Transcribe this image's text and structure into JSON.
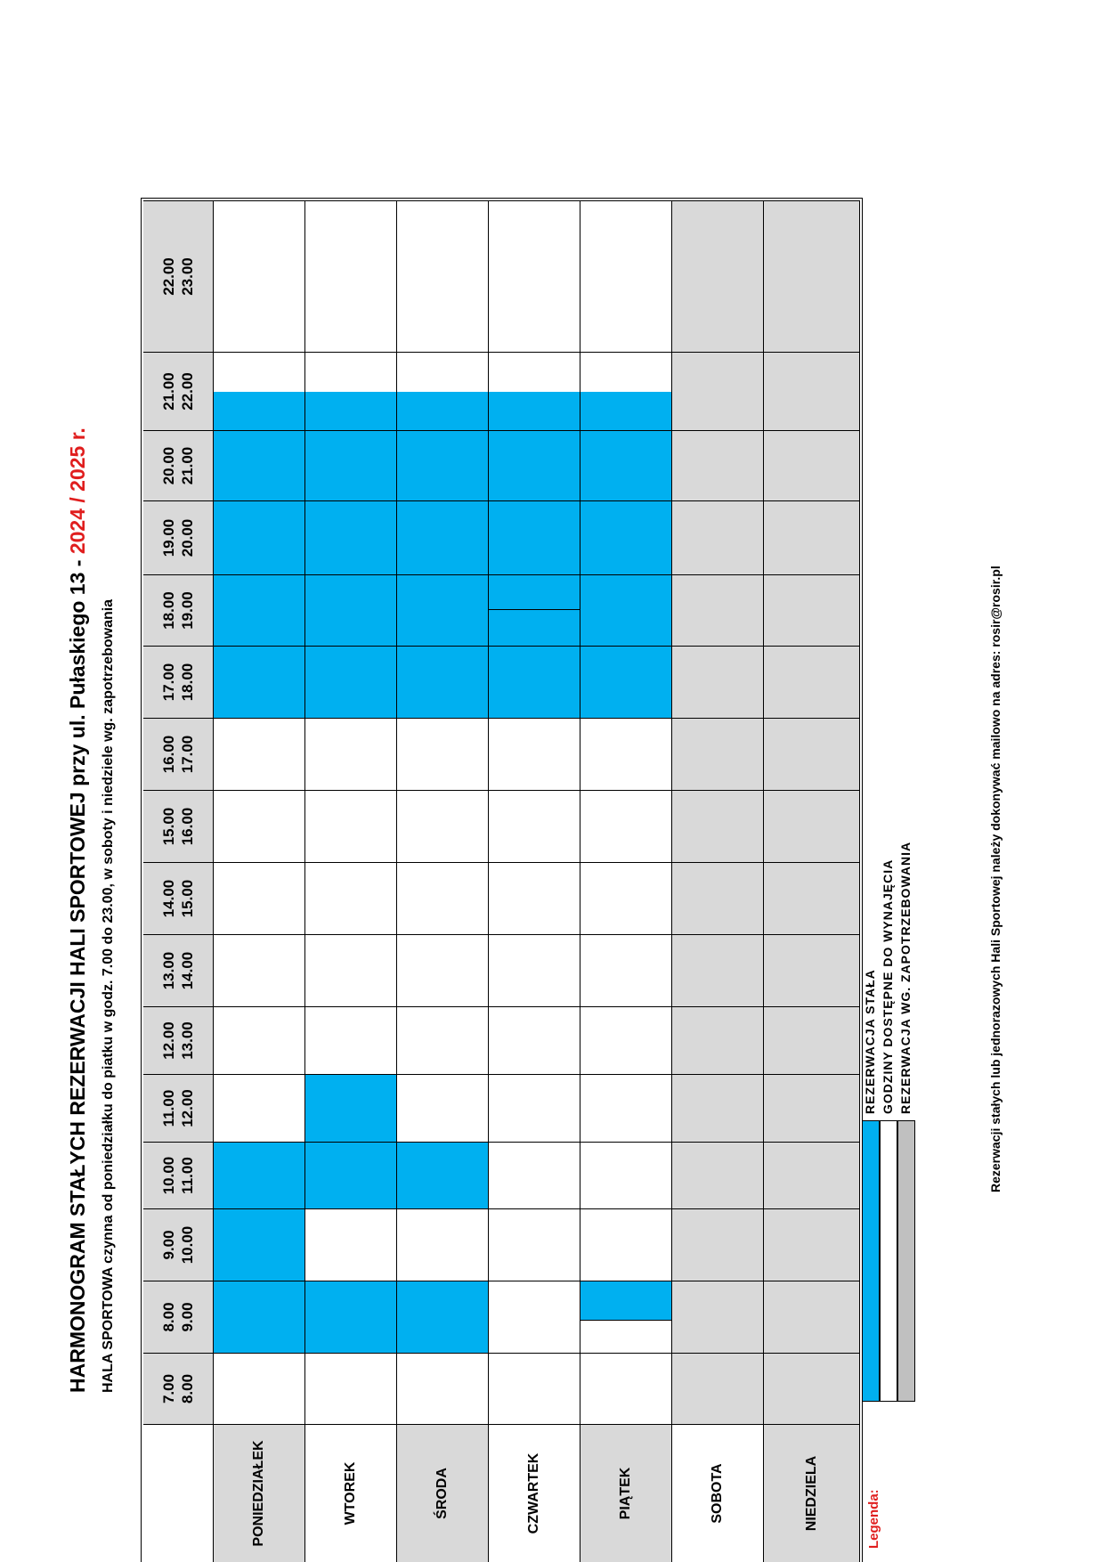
{
  "title": {
    "main": "HARMONOGRAM STAŁYCH REZERWACJI HALI SPORTOWEJ przy ul. Pułaskiego 13 -",
    "year": "2024 / 2025 r."
  },
  "subtitle": "HALA SPORTOWA czynna od poniedziałku do piatku w godz. 7.00 do 23.00,  w soboty i niedziele wg. zapotrzebowania",
  "hours": [
    {
      "from": "7.00",
      "to": "8.00"
    },
    {
      "from": "8.00",
      "to": "9.00"
    },
    {
      "from": "9.00",
      "to": "10.00"
    },
    {
      "from": "10.00",
      "to": "11.00"
    },
    {
      "from": "11.00",
      "to": "12.00"
    },
    {
      "from": "12.00",
      "to": "13.00"
    },
    {
      "from": "13.00",
      "to": "14.00"
    },
    {
      "from": "14.00",
      "to": "15.00"
    },
    {
      "from": "15.00",
      "to": "16.00"
    },
    {
      "from": "16.00",
      "to": "17.00"
    },
    {
      "from": "17.00",
      "to": "18.00"
    },
    {
      "from": "18.00",
      "to": "19.00"
    },
    {
      "from": "19.00",
      "to": "20.00"
    },
    {
      "from": "20.00",
      "to": "21.00"
    },
    {
      "from": "21.00",
      "to": "22.00"
    },
    {
      "from": "22.00",
      "to": "23.00"
    }
  ],
  "days": [
    {
      "label": "PONIEDZIAŁEK",
      "slots": [
        "free",
        "res",
        "res",
        "res",
        "free",
        "free",
        "free",
        "free",
        "free",
        "free",
        "res",
        "res",
        "res",
        "res",
        "res-half",
        "free"
      ]
    },
    {
      "label": "WTOREK",
      "slots": [
        "free",
        "res",
        "free",
        "res",
        "res",
        "free",
        "free",
        "free",
        "free",
        "free",
        "res",
        "res",
        "res",
        "res",
        "res-half",
        "free"
      ]
    },
    {
      "label": "ŚRODA",
      "slots": [
        "free",
        "res",
        "free",
        "res",
        "free",
        "free",
        "free",
        "free",
        "free",
        "free",
        "res",
        "res",
        "res",
        "res",
        "res-half",
        "free"
      ]
    },
    {
      "label": "CZWARTEK",
      "slots": [
        "free",
        "free",
        "free",
        "free",
        "free",
        "free",
        "free",
        "free",
        "free",
        "free",
        "res",
        "res-split",
        "res",
        "res",
        "res-half",
        "free"
      ]
    },
    {
      "label": "PIĄTEK",
      "slots": [
        "free",
        "res-mid",
        "free",
        "free",
        "free",
        "free",
        "free",
        "free",
        "free",
        "free",
        "res",
        "res",
        "res",
        "res",
        "res-half",
        "free"
      ]
    },
    {
      "label": "SOBOTA",
      "slots": [
        "on",
        "on",
        "on",
        "on",
        "on",
        "on",
        "on",
        "on",
        "on",
        "on",
        "on",
        "on",
        "on",
        "on",
        "on",
        "on"
      ]
    },
    {
      "label": "NIEDZIELA",
      "slots": [
        "on",
        "on",
        "on",
        "on",
        "on",
        "on",
        "on",
        "on",
        "on",
        "on",
        "on",
        "on",
        "on",
        "on",
        "on",
        "on"
      ]
    }
  ],
  "legend": {
    "title": "Legenda:",
    "items": [
      {
        "label": "REZERWACJA STAŁA",
        "color": "#00b0f0"
      },
      {
        "label": "GODZINY DOSTĘPNE DO WYNAJĘCIA",
        "color": "#ffffff"
      },
      {
        "label": "REZERWACJA WG. ZAPOTRZEBOWANIA",
        "color": "#c0c0c0"
      }
    ]
  },
  "footer": "Rezerwacji stałych lub jednorazowych Hali Sportowej należy dokonywać mailowo na adres: rosir@rosir.pl",
  "colors": {
    "reserved": "#00b0f0",
    "free": "#ffffff",
    "on_demand": "#d9d9d9",
    "accent": "#e01e1e"
  }
}
